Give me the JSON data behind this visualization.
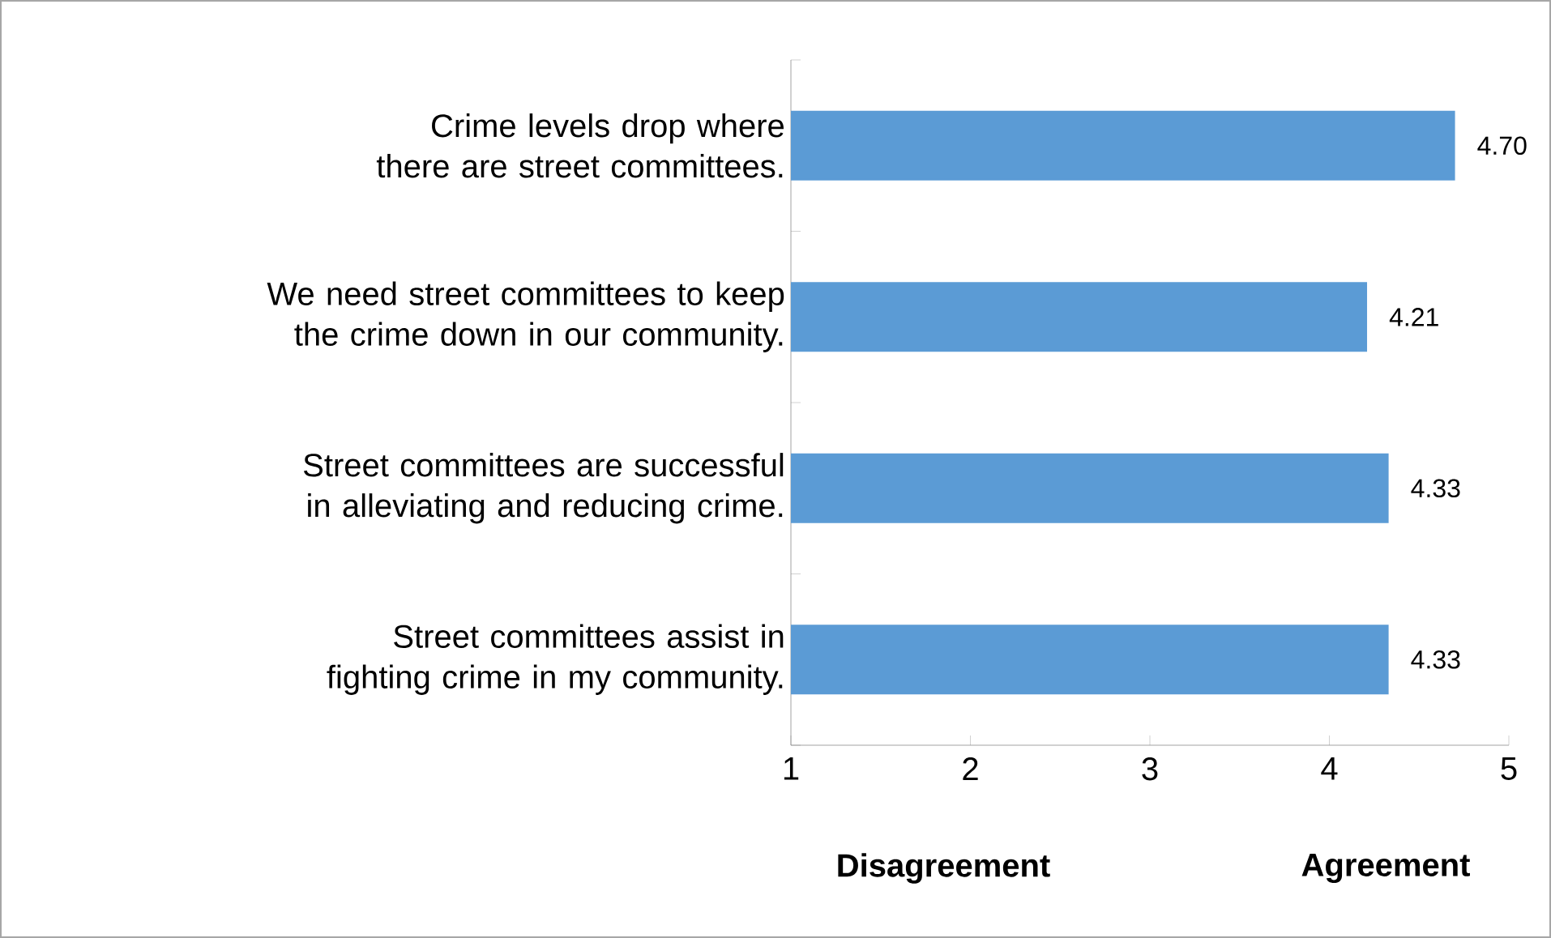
{
  "chart_data": {
    "type": "bar",
    "orientation": "horizontal",
    "categories": [
      "Crime levels drop where there are street committees.",
      "We need street committees to keep the crime down in our community.",
      "Street committees are successful in alleviating and reducing crime.",
      "Street committees assist in fighting crime in my community."
    ],
    "values": [
      4.7,
      4.21,
      4.33,
      4.33
    ],
    "value_labels": [
      "4.70",
      "4.21",
      "4.33",
      "4.33"
    ],
    "color": "#5b9bd5",
    "xlim": [
      1,
      5
    ],
    "xticks": [
      1,
      2,
      3,
      4,
      5
    ],
    "annotations": [
      "Disagreement",
      "Agreement"
    ]
  }
}
